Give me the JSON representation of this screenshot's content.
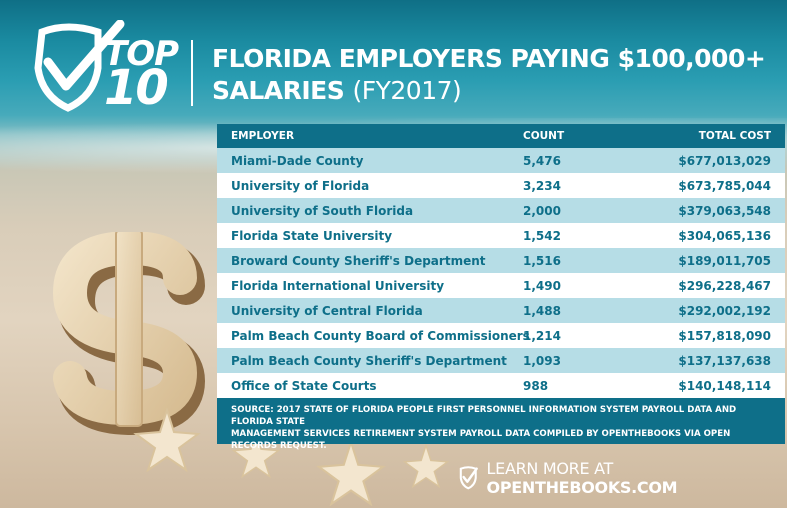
{
  "header": {
    "logo_top": "TOP",
    "logo_ten": "10",
    "title_line1": "FLORIDA EMPLOYERS PAYING $100,000+",
    "title_line2_bold": "SALARIES",
    "title_line2_light": "(FY2017)"
  },
  "table": {
    "headers": {
      "employer": "EMPLOYER",
      "count": "COUNT",
      "total_cost": "TOTAL COST"
    },
    "rows": [
      {
        "employer": "Miami-Dade County",
        "count": "5,476",
        "total_cost": "$677,013,029"
      },
      {
        "employer": "University of Florida",
        "count": "3,234",
        "total_cost": "$673,785,044"
      },
      {
        "employer": "University of South Florida",
        "count": "2,000",
        "total_cost": "$379,063,548"
      },
      {
        "employer": "Florida State University",
        "count": "1,542",
        "total_cost": "$304,065,136"
      },
      {
        "employer": "Broward County Sheriff's Department",
        "count": "1,516",
        "total_cost": "$189,011,705"
      },
      {
        "employer": "Florida International University",
        "count": "1,490",
        "total_cost": "$296,228,467"
      },
      {
        "employer": "University of Central Florida",
        "count": "1,488",
        "total_cost": "$292,002,192"
      },
      {
        "employer": "Palm Beach County Board of Commissioners",
        "count": "1,214",
        "total_cost": "$157,818,090"
      },
      {
        "employer": "Palm Beach County Sheriff's Department",
        "count": "1,093",
        "total_cost": "$137,137,638"
      },
      {
        "employer": "Office of State Courts",
        "count": "988",
        "total_cost": "$140,148,114"
      }
    ],
    "source_line1": "SOURCE: 2017 STATE OF FLORIDA PEOPLE FIRST PERSONNEL INFORMATION SYSTEM PAYROLL DATA AND FLORIDA STATE",
    "source_line2": "MANAGEMENT SERVICES RETIREMENT SYSTEM PAYROLL DATA COMPILED BY OPENTHEBOOKS VIA OPEN RECORDS REQUEST."
  },
  "footer": {
    "learn_more": "LEARN MORE AT",
    "site": "OPENTHEBOOKS.COM"
  },
  "colors": {
    "header_bar": "#0e6f89",
    "alt_row": "#b6dde6",
    "text": "#0e6f89"
  },
  "icons": [
    "checkmark-shield-icon",
    "dollar-sign-icon",
    "starfish-icon"
  ]
}
